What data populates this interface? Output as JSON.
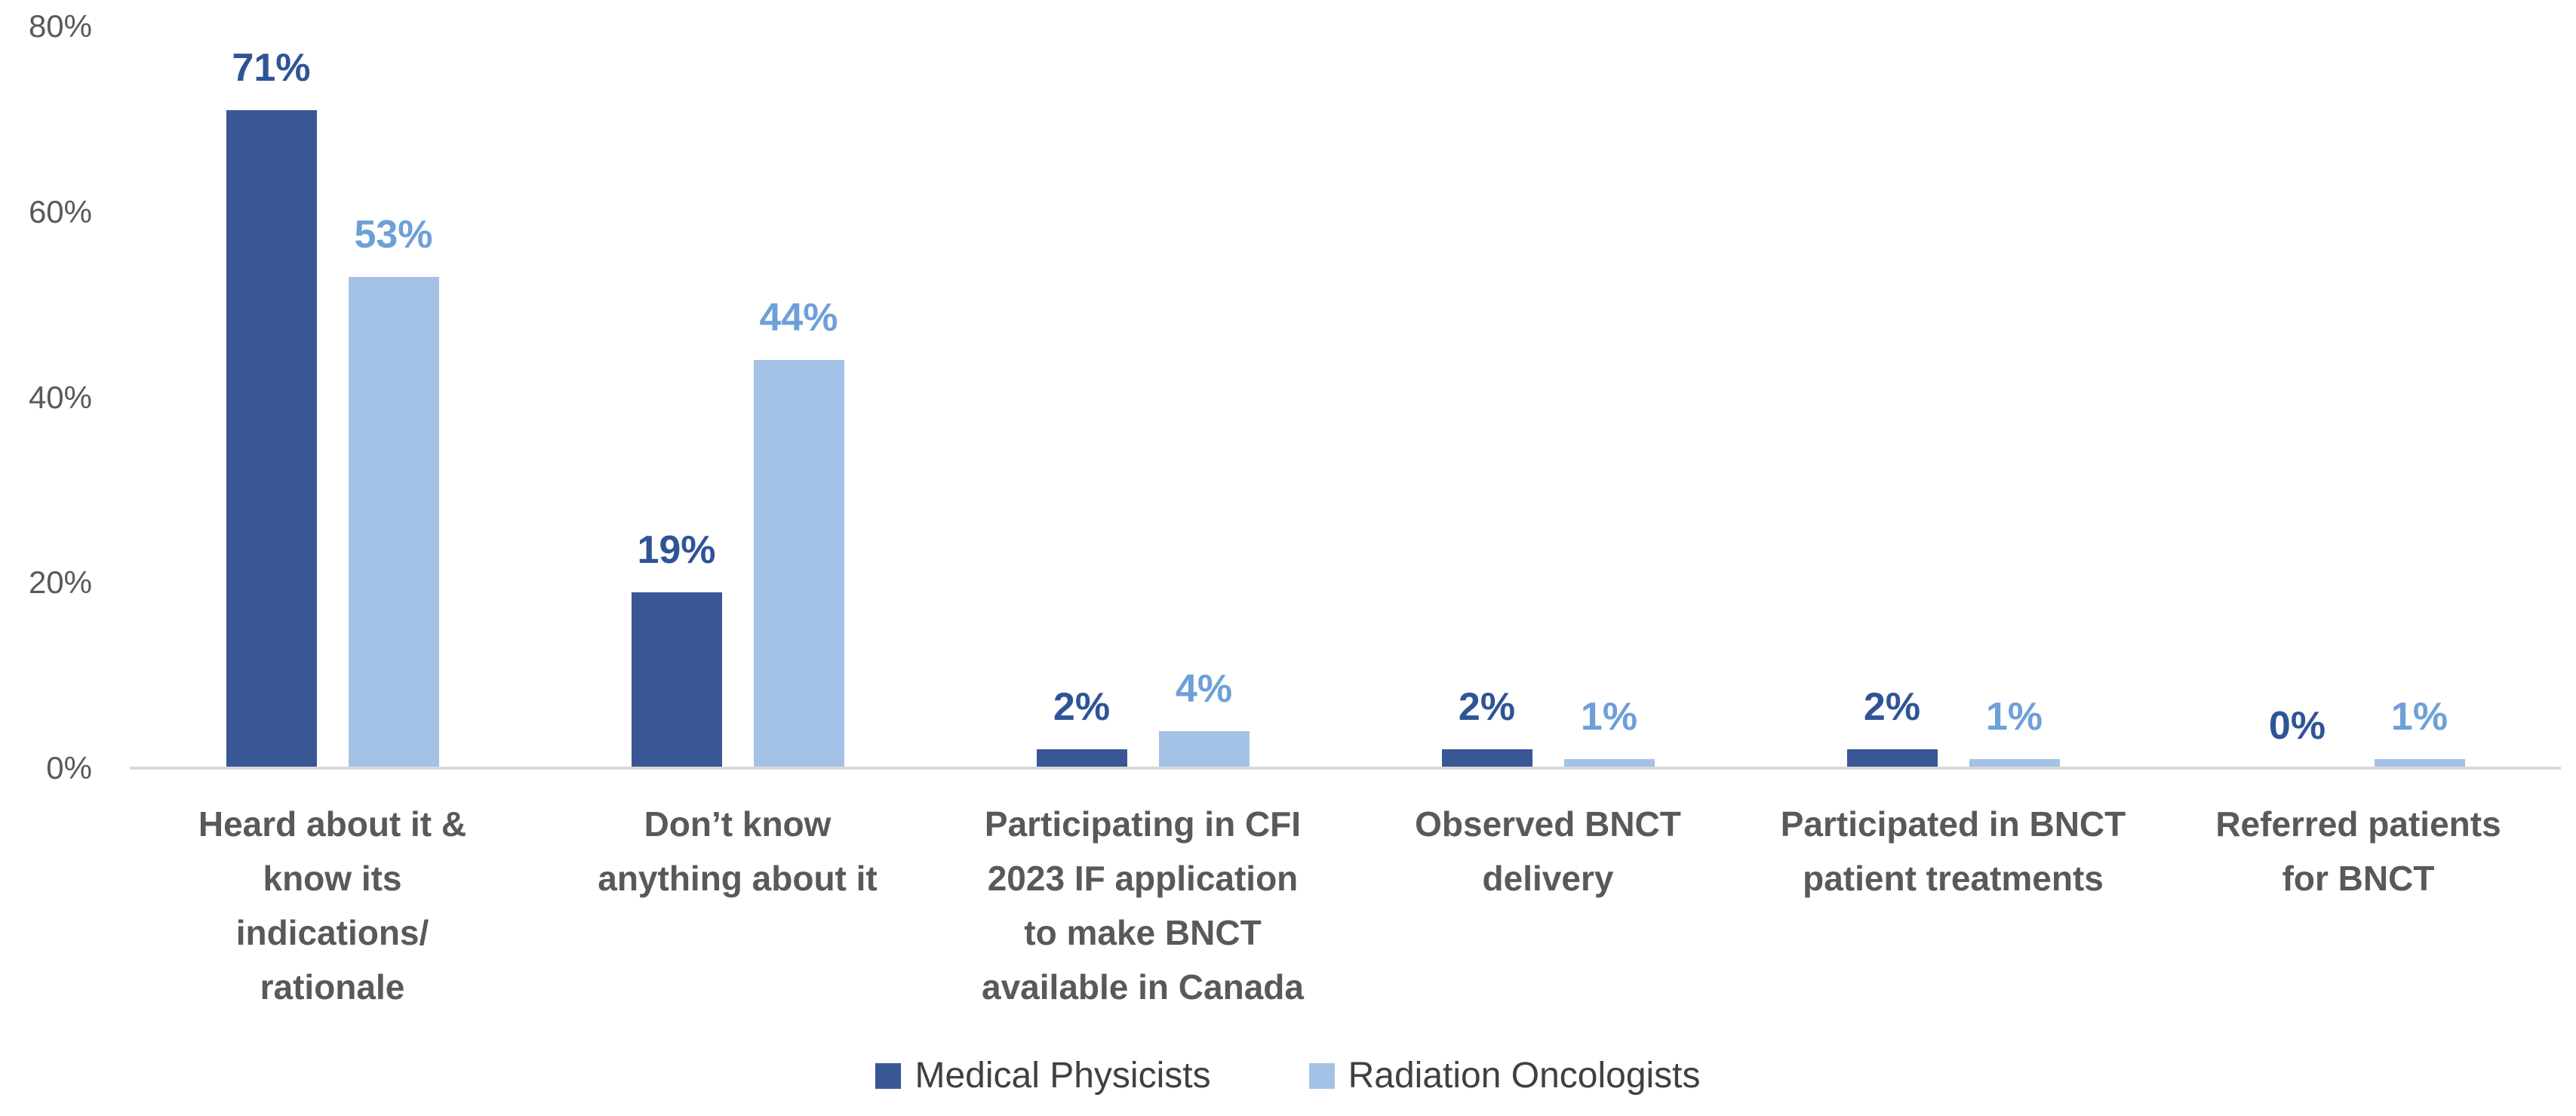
{
  "chart_data": {
    "type": "bar",
    "title": "",
    "categories": [
      "Heard about it &\nknow its\nindications/\nrationale",
      "Don’t know\nanything about it",
      "Participating in CFI\n2023 IF application\nto make BNCT\navailable in Canada",
      "Observed BNCT\ndelivery",
      "Participated in BNCT\npatient treatments",
      "Referred patients\nfor BNCT"
    ],
    "series": [
      {
        "name": "Medical Physicists",
        "values": [
          71,
          19,
          2,
          2,
          2,
          0
        ],
        "color": "#3A5795",
        "label_color": "#2F5496"
      },
      {
        "name": "Radiation Oncologists",
        "values": [
          53,
          44,
          4,
          1,
          1,
          1
        ],
        "color": "#A4C2E6",
        "label_color": "#6EA0D8"
      }
    ],
    "value_suffix": "%",
    "y_axis": {
      "ticks": [
        "0%",
        "20%",
        "40%",
        "60%",
        "80%"
      ],
      "min": 0,
      "max": 80
    },
    "grid": false,
    "legend_position": "bottom",
    "colors": {
      "axis_line": "#D9D9D9",
      "axis_text": "#595959",
      "category_text": "#595959",
      "legend_text": "#404040"
    }
  }
}
